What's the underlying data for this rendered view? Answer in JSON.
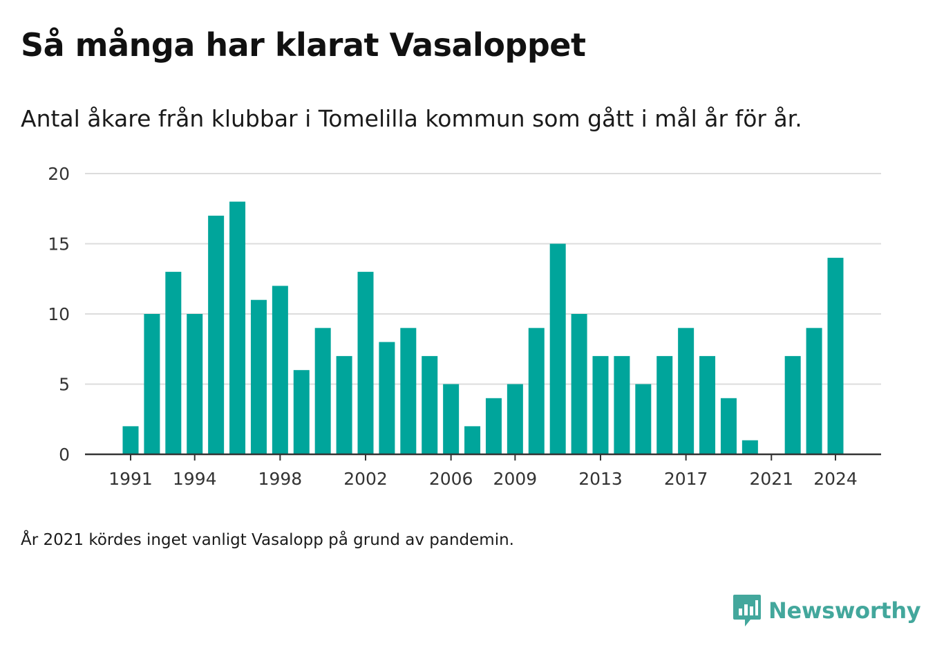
{
  "title": "Så många har klarat Vasaloppet",
  "subtitle": "Antal åkare från klubbar i Tomelilla kommun som gått i mål år för år.",
  "note": "År 2021 kördes inget vanligt Vasalopp på grund av pandemin.",
  "brand": {
    "name": "Newsworthy",
    "color": "#43a79c"
  },
  "chart_data": {
    "type": "bar",
    "x": [
      1991,
      1992,
      1993,
      1994,
      1995,
      1996,
      1997,
      1998,
      1999,
      2000,
      2001,
      2002,
      2003,
      2004,
      2005,
      2006,
      2007,
      2008,
      2009,
      2010,
      2011,
      2012,
      2013,
      2014,
      2015,
      2016,
      2017,
      2018,
      2019,
      2020,
      2021,
      2022,
      2023,
      2024
    ],
    "values": [
      2,
      10,
      13,
      10,
      17,
      18,
      11,
      12,
      6,
      9,
      7,
      13,
      8,
      9,
      7,
      5,
      2,
      4,
      5,
      9,
      15,
      10,
      7,
      7,
      5,
      7,
      9,
      7,
      4,
      1,
      null,
      7,
      9,
      14
    ],
    "x_ticks": [
      "1991",
      "1994",
      "1998",
      "2002",
      "2006",
      "2009",
      "2013",
      "2017",
      "2021",
      "2024"
    ],
    "y_ticks": [
      0,
      5,
      10,
      15,
      20
    ],
    "ylim": [
      0,
      20
    ],
    "grid": true,
    "bar_color": "#00a59b",
    "xlabel": "",
    "ylabel": ""
  }
}
